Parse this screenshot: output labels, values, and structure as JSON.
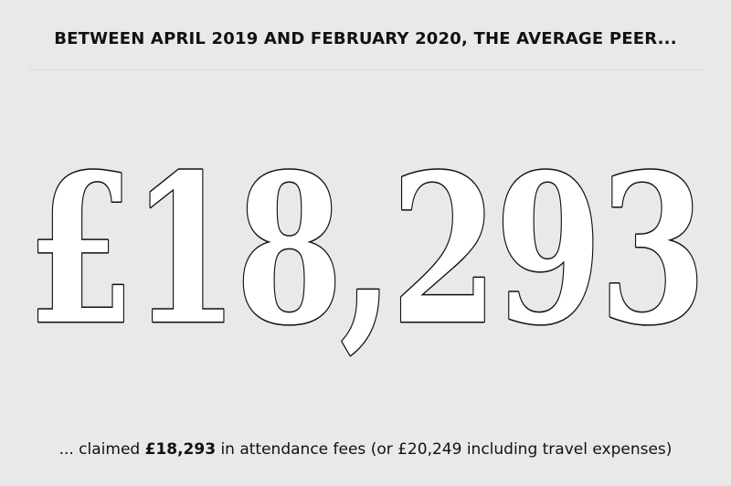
{
  "headline": "BETWEEN APRIL 2019 AND FEBRUARY 2020, THE AVERAGE PEER...",
  "big_figure": "£18,293",
  "caption": {
    "prefix": "... claimed ",
    "amount": "£18,293",
    "suffix": " in attendance fees (or £20,249 including travel expenses)"
  },
  "colors": {
    "background": "#e9e9ea",
    "text": "#111111",
    "figure_fill": "#ffffff",
    "figure_outline": "#111111"
  }
}
